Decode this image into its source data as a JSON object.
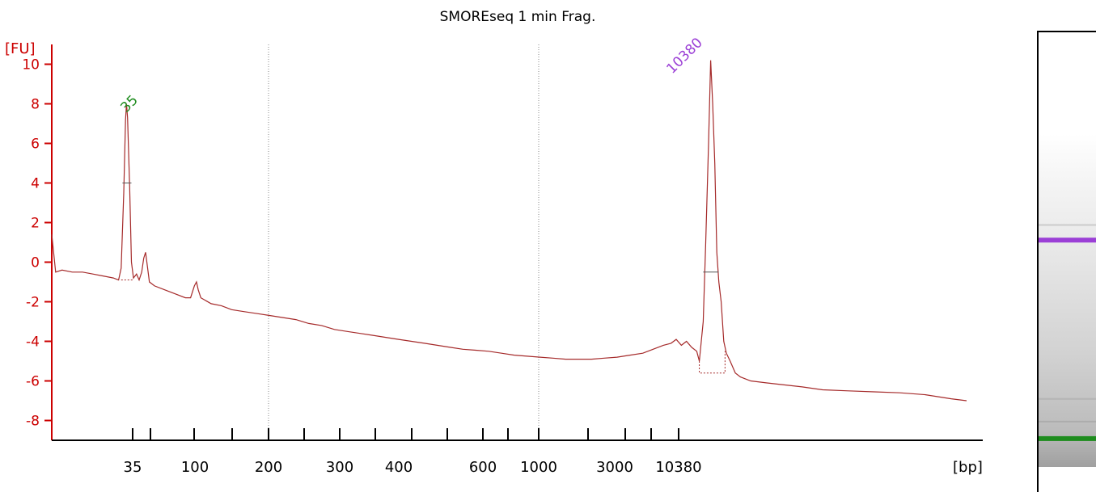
{
  "chart_data": {
    "type": "line",
    "title": "SMOREseq 1 min Frag.",
    "ylabel": "[FU]",
    "xlabel": "[bp]",
    "ylim": [
      -9,
      11
    ],
    "yticks": [
      -8,
      -6,
      -4,
      -2,
      0,
      2,
      4,
      6,
      8,
      10
    ],
    "xaxis_labels": [
      "35",
      "100",
      "200",
      "300",
      "400",
      "600",
      "1000",
      "3000",
      "10380"
    ],
    "grid": "vertical dotted at 200 and 1000",
    "legend": "none",
    "peaks": [
      {
        "label": "35",
        "size_bp": 35,
        "fu": 8.0,
        "color": "#1e8c1e"
      },
      {
        "label": "10380",
        "size_bp": 10380,
        "fu": 10.2,
        "color": "#9b3fd6"
      }
    ],
    "series": [
      {
        "color": "#a52a2a",
        "points": [
          [
            0,
            1.4
          ],
          [
            1.5,
            -0.5
          ],
          [
            4,
            -0.4
          ],
          [
            8,
            -0.5
          ],
          [
            12,
            -0.5
          ],
          [
            16,
            -0.6
          ],
          [
            20,
            -0.7
          ],
          [
            24,
            -0.8
          ],
          [
            26,
            -0.9
          ],
          [
            27,
            -0.3
          ],
          [
            28,
            3.5
          ],
          [
            28.7,
            7.2
          ],
          [
            29.1,
            8.0
          ],
          [
            29.5,
            7.3
          ],
          [
            30.3,
            3.8
          ],
          [
            31,
            0.0
          ],
          [
            31.8,
            -0.8
          ],
          [
            33,
            -0.6
          ],
          [
            34,
            -0.9
          ],
          [
            35,
            -0.5
          ],
          [
            35.8,
            0.2
          ],
          [
            36.5,
            0.5
          ],
          [
            37.2,
            -0.2
          ],
          [
            38,
            -1.0
          ],
          [
            40,
            -1.2
          ],
          [
            44,
            -1.4
          ],
          [
            48,
            -1.6
          ],
          [
            52,
            -1.8
          ],
          [
            54,
            -1.8
          ],
          [
            55.5,
            -1.2
          ],
          [
            56.3,
            -1.0
          ],
          [
            57,
            -1.4
          ],
          [
            58,
            -1.8
          ],
          [
            62,
            -2.1
          ],
          [
            66,
            -2.2
          ],
          [
            70,
            -2.4
          ],
          [
            75,
            -2.5
          ],
          [
            80,
            -2.6
          ],
          [
            85,
            -2.7
          ],
          [
            90,
            -2.8
          ],
          [
            95,
            -2.9
          ],
          [
            100,
            -3.1
          ],
          [
            105,
            -3.2
          ],
          [
            110,
            -3.4
          ],
          [
            115,
            -3.5
          ],
          [
            120,
            -3.6
          ],
          [
            125,
            -3.7
          ],
          [
            130,
            -3.8
          ],
          [
            135,
            -3.9
          ],
          [
            140,
            -4.0
          ],
          [
            145,
            -4.1
          ],
          [
            150,
            -4.2
          ],
          [
            155,
            -4.3
          ],
          [
            160,
            -4.4
          ],
          [
            165,
            -4.45
          ],
          [
            170,
            -4.5
          ],
          [
            175,
            -4.6
          ],
          [
            180,
            -4.7
          ],
          [
            185,
            -4.75
          ],
          [
            190,
            -4.8
          ],
          [
            195,
            -4.85
          ],
          [
            200,
            -4.9
          ],
          [
            205,
            -4.9
          ],
          [
            210,
            -4.9
          ],
          [
            215,
            -4.85
          ],
          [
            220,
            -4.8
          ],
          [
            225,
            -4.7
          ],
          [
            230,
            -4.6
          ],
          [
            234,
            -4.4
          ],
          [
            238,
            -4.2
          ],
          [
            241,
            -4.1
          ],
          [
            243,
            -3.9
          ],
          [
            245,
            -4.2
          ],
          [
            247,
            -4.0
          ],
          [
            249,
            -4.3
          ],
          [
            251,
            -4.5
          ],
          [
            252,
            -5.0
          ],
          [
            253.5,
            -3.0
          ],
          [
            254.5,
            1.0
          ],
          [
            255.6,
            6.0
          ],
          [
            256.4,
            10.2
          ],
          [
            257.2,
            8.0
          ],
          [
            258,
            5.0
          ],
          [
            258.8,
            0.5
          ],
          [
            259.6,
            -1.0
          ],
          [
            260.5,
            -2.0
          ],
          [
            261.5,
            -4.0
          ],
          [
            262.5,
            -4.6
          ],
          [
            264,
            -5.0
          ],
          [
            266,
            -5.6
          ],
          [
            268,
            -5.8
          ],
          [
            272,
            -6.0
          ],
          [
            278,
            -6.1
          ],
          [
            285,
            -6.2
          ],
          [
            292,
            -6.3
          ],
          [
            300,
            -6.45
          ],
          [
            310,
            -6.5
          ],
          [
            320,
            -6.55
          ],
          [
            330,
            -6.6
          ],
          [
            340,
            -6.7
          ],
          [
            345,
            -6.8
          ],
          [
            350,
            -6.9
          ],
          [
            356,
            -7.0
          ]
        ]
      }
    ]
  },
  "gel_lane": {
    "bands": [
      {
        "position": 0.4,
        "color": "#9b3fd6",
        "label": "10380"
      },
      {
        "position": 0.925,
        "color": "#1e8c1e",
        "label": "35"
      }
    ]
  }
}
